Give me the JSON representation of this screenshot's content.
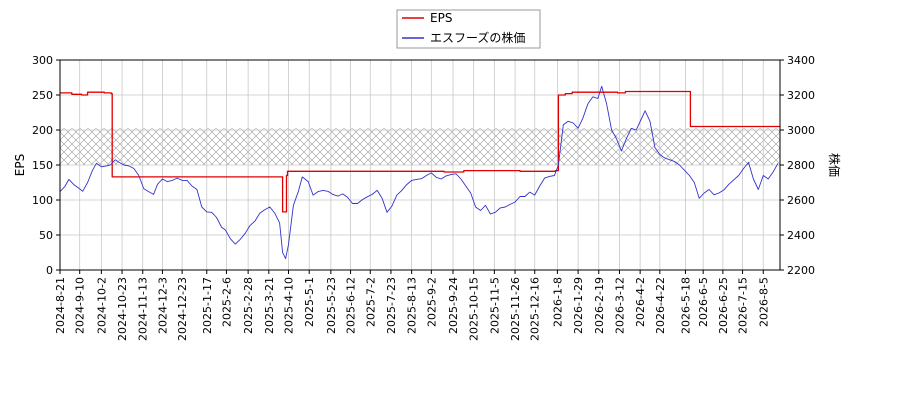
{
  "chart_data": {
    "type": "line",
    "legend": {
      "placement": "top-center",
      "entries": [
        {
          "label": "EPS",
          "color": "#e00000"
        },
        {
          "label": "エスフーズの株価",
          "color": "#3333cc"
        }
      ]
    },
    "y_left": {
      "label": "EPS",
      "lim": [
        0,
        300
      ],
      "ticks": [
        "0",
        "50",
        "100",
        "150",
        "200",
        "250",
        "300"
      ]
    },
    "y_right": {
      "label": "株価",
      "lim": [
        2200,
        3400
      ],
      "ticks": [
        "2200",
        "2400",
        "2600",
        "2800",
        "3000",
        "3200",
        "3400"
      ]
    },
    "x_axis": {
      "lim": [
        "2024-08-21",
        "2026-08-22"
      ],
      "tick_labels": [
        "2024-8-21",
        "2024-9-10",
        "2024-10-2",
        "2024-10-23",
        "2024-11-13",
        "2024-12-3",
        "2024-12-23",
        "2025-1-17",
        "2025-2-6",
        "2025-2-28",
        "2025-3-21",
        "2025-4-10",
        "2025-5-1",
        "2025-5-23",
        "2025-6-12",
        "2025-7-2",
        "2025-7-23",
        "2025-8-13",
        "2025-9-2",
        "2025-9-24",
        "2025-10-15",
        "2025-11-5",
        "2025-11-26",
        "2025-12-16",
        "2026-1-8",
        "2026-1-29",
        "2026-2-19",
        "2026-3-12",
        "2026-4-2",
        "2026-4-22",
        "2026-5-18",
        "2026-6-5",
        "2026-6-25",
        "2026-7-15",
        "2026-8-5"
      ]
    },
    "grid": true,
    "hatched_band": {
      "axis": "right",
      "from": 2800,
      "to": 3010
    },
    "series": [
      {
        "name": "EPS",
        "axis": "left",
        "color": "#e00000",
        "step": true,
        "points": [
          [
            "2024-08-21",
            253
          ],
          [
            "2024-09-02",
            251
          ],
          [
            "2024-09-12",
            250
          ],
          [
            "2024-09-18",
            254
          ],
          [
            "2024-10-05",
            253
          ],
          [
            "2024-10-12",
            252
          ],
          [
            "2024-10-13",
            133
          ],
          [
            "2025-04-03",
            133
          ],
          [
            "2025-04-04",
            83
          ],
          [
            "2025-04-08",
            135
          ],
          [
            "2025-04-09",
            141
          ],
          [
            "2025-07-01",
            141
          ],
          [
            "2025-09-15",
            140
          ],
          [
            "2025-10-05",
            142
          ],
          [
            "2025-12-01",
            141
          ],
          [
            "2026-01-06",
            142
          ],
          [
            "2026-01-09",
            250
          ],
          [
            "2026-01-16",
            252
          ],
          [
            "2026-01-23",
            254
          ],
          [
            "2026-03-10",
            253
          ],
          [
            "2026-03-18",
            255
          ],
          [
            "2026-05-22",
            255
          ],
          [
            "2026-05-23",
            205
          ],
          [
            "2026-08-22",
            205
          ]
        ]
      },
      {
        "name": "エスフーズの株価",
        "axis": "right",
        "color": "#3333cc",
        "step": false,
        "points": [
          [
            "2024-08-21",
            2648
          ],
          [
            "2024-08-26",
            2678
          ],
          [
            "2024-08-30",
            2718
          ],
          [
            "2024-09-04",
            2688
          ],
          [
            "2024-09-09",
            2668
          ],
          [
            "2024-09-13",
            2650
          ],
          [
            "2024-09-18",
            2700
          ],
          [
            "2024-09-23",
            2770
          ],
          [
            "2024-09-27",
            2810
          ],
          [
            "2024-10-02",
            2790
          ],
          [
            "2024-10-07",
            2795
          ],
          [
            "2024-10-11",
            2800
          ],
          [
            "2024-10-16",
            2830
          ],
          [
            "2024-10-20",
            2815
          ],
          [
            "2024-10-25",
            2800
          ],
          [
            "2024-10-30",
            2795
          ],
          [
            "2024-11-04",
            2780
          ],
          [
            "2024-11-09",
            2740
          ],
          [
            "2024-11-14",
            2665
          ],
          [
            "2024-11-19",
            2648
          ],
          [
            "2024-11-24",
            2632
          ],
          [
            "2024-11-28",
            2690
          ],
          [
            "2024-12-03",
            2720
          ],
          [
            "2024-12-08",
            2705
          ],
          [
            "2024-12-13",
            2712
          ],
          [
            "2024-12-18",
            2725
          ],
          [
            "2024-12-23",
            2712
          ],
          [
            "2024-12-28",
            2712
          ],
          [
            "2025-01-02",
            2680
          ],
          [
            "2025-01-07",
            2660
          ],
          [
            "2025-01-12",
            2560
          ],
          [
            "2025-01-17",
            2532
          ],
          [
            "2025-01-22",
            2530
          ],
          [
            "2025-01-27",
            2500
          ],
          [
            "2025-02-01",
            2445
          ],
          [
            "2025-02-05",
            2428
          ],
          [
            "2025-02-10",
            2378
          ],
          [
            "2025-02-15",
            2348
          ],
          [
            "2025-02-20",
            2375
          ],
          [
            "2025-02-25",
            2410
          ],
          [
            "2025-03-02",
            2455
          ],
          [
            "2025-03-07",
            2480
          ],
          [
            "2025-03-12",
            2525
          ],
          [
            "2025-03-17",
            2545
          ],
          [
            "2025-03-22",
            2560
          ],
          [
            "2025-03-27",
            2525
          ],
          [
            "2025-04-01",
            2470
          ],
          [
            "2025-04-04",
            2300
          ],
          [
            "2025-04-07",
            2265
          ],
          [
            "2025-04-10",
            2345
          ],
          [
            "2025-04-15",
            2570
          ],
          [
            "2025-04-20",
            2650
          ],
          [
            "2025-04-24",
            2732
          ],
          [
            "2025-04-30",
            2705
          ],
          [
            "2025-05-05",
            2628
          ],
          [
            "2025-05-10",
            2648
          ],
          [
            "2025-05-15",
            2655
          ],
          [
            "2025-05-20",
            2650
          ],
          [
            "2025-05-25",
            2632
          ],
          [
            "2025-05-30",
            2622
          ],
          [
            "2025-06-04",
            2635
          ],
          [
            "2025-06-09",
            2615
          ],
          [
            "2025-06-14",
            2580
          ],
          [
            "2025-06-19",
            2580
          ],
          [
            "2025-06-24",
            2602
          ],
          [
            "2025-06-29",
            2618
          ],
          [
            "2025-07-04",
            2632
          ],
          [
            "2025-07-09",
            2655
          ],
          [
            "2025-07-14",
            2610
          ],
          [
            "2025-07-19",
            2530
          ],
          [
            "2025-07-24",
            2565
          ],
          [
            "2025-07-29",
            2628
          ],
          [
            "2025-08-03",
            2655
          ],
          [
            "2025-08-08",
            2688
          ],
          [
            "2025-08-13",
            2712
          ],
          [
            "2025-08-18",
            2718
          ],
          [
            "2025-08-23",
            2722
          ],
          [
            "2025-08-28",
            2740
          ],
          [
            "2025-09-02",
            2755
          ],
          [
            "2025-09-07",
            2730
          ],
          [
            "2025-09-12",
            2720
          ],
          [
            "2025-09-17",
            2738
          ],
          [
            "2025-09-22",
            2745
          ],
          [
            "2025-09-27",
            2750
          ],
          [
            "2025-10-02",
            2720
          ],
          [
            "2025-10-07",
            2680
          ],
          [
            "2025-10-12",
            2640
          ],
          [
            "2025-10-17",
            2560
          ],
          [
            "2025-10-22",
            2540
          ],
          [
            "2025-10-27",
            2570
          ],
          [
            "2025-11-01",
            2520
          ],
          [
            "2025-11-06",
            2530
          ],
          [
            "2025-11-11",
            2555
          ],
          [
            "2025-11-16",
            2560
          ],
          [
            "2025-11-21",
            2575
          ],
          [
            "2025-11-26",
            2588
          ],
          [
            "2025-12-01",
            2620
          ],
          [
            "2025-12-06",
            2620
          ],
          [
            "2025-12-11",
            2645
          ],
          [
            "2025-12-16",
            2628
          ],
          [
            "2025-12-21",
            2680
          ],
          [
            "2025-12-26",
            2725
          ],
          [
            "2025-12-31",
            2735
          ],
          [
            "2026-01-05",
            2740
          ],
          [
            "2026-01-09",
            2800
          ],
          [
            "2026-01-14",
            3030
          ],
          [
            "2026-01-19",
            3050
          ],
          [
            "2026-01-24",
            3040
          ],
          [
            "2026-01-29",
            3010
          ],
          [
            "2026-02-03",
            3070
          ],
          [
            "2026-02-08",
            3150
          ],
          [
            "2026-02-13",
            3190
          ],
          [
            "2026-02-18",
            3180
          ],
          [
            "2026-02-22",
            3250
          ],
          [
            "2026-02-27",
            3150
          ],
          [
            "2026-03-04",
            3000
          ],
          [
            "2026-03-09",
            2950
          ],
          [
            "2026-03-14",
            2880
          ],
          [
            "2026-03-19",
            2950
          ],
          [
            "2026-03-24",
            3010
          ],
          [
            "2026-03-29",
            3000
          ],
          [
            "2026-04-03",
            3060
          ],
          [
            "2026-04-07",
            3110
          ],
          [
            "2026-04-12",
            3050
          ],
          [
            "2026-04-17",
            2900
          ],
          [
            "2026-04-22",
            2860
          ],
          [
            "2026-04-27",
            2840
          ],
          [
            "2026-05-02",
            2830
          ],
          [
            "2026-05-07",
            2820
          ],
          [
            "2026-05-12",
            2800
          ],
          [
            "2026-05-17",
            2770
          ],
          [
            "2026-05-22",
            2740
          ],
          [
            "2026-05-27",
            2700
          ],
          [
            "2026-06-01",
            2610
          ],
          [
            "2026-06-06",
            2640
          ],
          [
            "2026-06-11",
            2660
          ],
          [
            "2026-06-16",
            2630
          ],
          [
            "2026-06-21",
            2640
          ],
          [
            "2026-06-26",
            2658
          ],
          [
            "2026-07-01",
            2690
          ],
          [
            "2026-07-06",
            2715
          ],
          [
            "2026-07-11",
            2740
          ],
          [
            "2026-07-16",
            2780
          ],
          [
            "2026-07-21",
            2815
          ],
          [
            "2026-07-26",
            2720
          ],
          [
            "2026-07-31",
            2660
          ],
          [
            "2026-08-05",
            2740
          ],
          [
            "2026-08-10",
            2720
          ],
          [
            "2026-08-15",
            2760
          ],
          [
            "2026-08-20",
            2810
          ]
        ]
      }
    ]
  }
}
